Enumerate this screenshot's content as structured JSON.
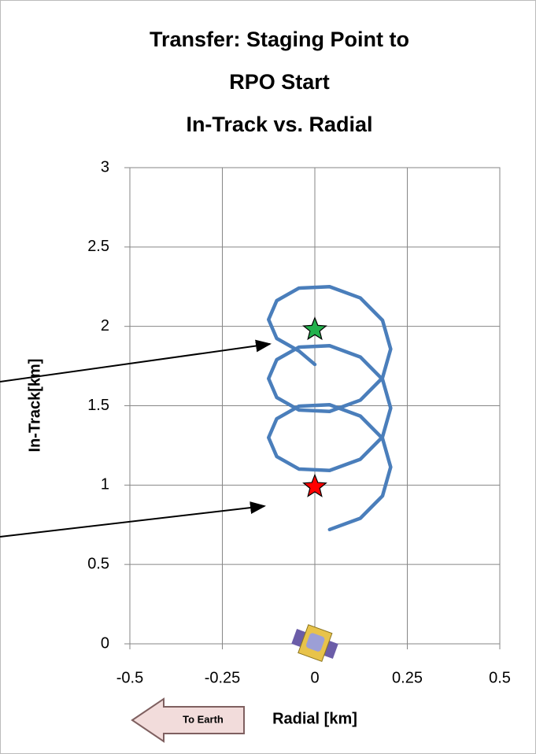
{
  "chart_data": {
    "type": "line",
    "title": [
      "Transfer: Staging Point to",
      "RPO Start",
      "In-Track vs. Radial"
    ],
    "x_label": "Radial [km]",
    "y_label": "In-Track[km]",
    "annotation": "To Earth",
    "x": [
      0.04,
      0.123,
      0.183,
      0.205,
      0.183,
      0.123,
      0.04,
      -0.043,
      -0.103,
      -0.125,
      -0.103,
      -0.043,
      0.04,
      0.123,
      0.183,
      0.205,
      0.183,
      0.123,
      0.04,
      -0.043,
      -0.103,
      -0.125,
      -0.103,
      -0.043,
      0.04,
      0.123,
      0.183,
      0.205,
      0.183,
      0.123,
      0.04,
      -0.043,
      -0.103,
      -0.125,
      -0.103,
      -0.043,
      0.0
    ],
    "series": [
      {
        "color": "#4a7ebb",
        "values": [
          0.72,
          0.791,
          0.932,
          1.113,
          1.294,
          1.435,
          1.506,
          1.497,
          1.418,
          1.299,
          1.18,
          1.101,
          1.092,
          1.163,
          1.304,
          1.485,
          1.666,
          1.807,
          1.878,
          1.869,
          1.79,
          1.671,
          1.552,
          1.473,
          1.464,
          1.535,
          1.676,
          1.857,
          2.038,
          2.179,
          2.25,
          2.241,
          2.162,
          2.043,
          1.924,
          1.845,
          1.76
        ]
      }
    ],
    "markers": [
      {
        "x": 0,
        "y": 1.98,
        "color": "#22b14c"
      },
      {
        "x": 0,
        "y": 0.99,
        "color": "#ff0000"
      }
    ],
    "xlim": [
      -0.5,
      0.5
    ],
    "xticks": [
      -0.5,
      -0.25,
      0,
      0.25,
      0.5
    ],
    "ylim": [
      0,
      3
    ],
    "yticks": [
      0,
      0.5,
      1,
      1.5,
      2,
      2.5,
      3
    ],
    "grid": true
  }
}
